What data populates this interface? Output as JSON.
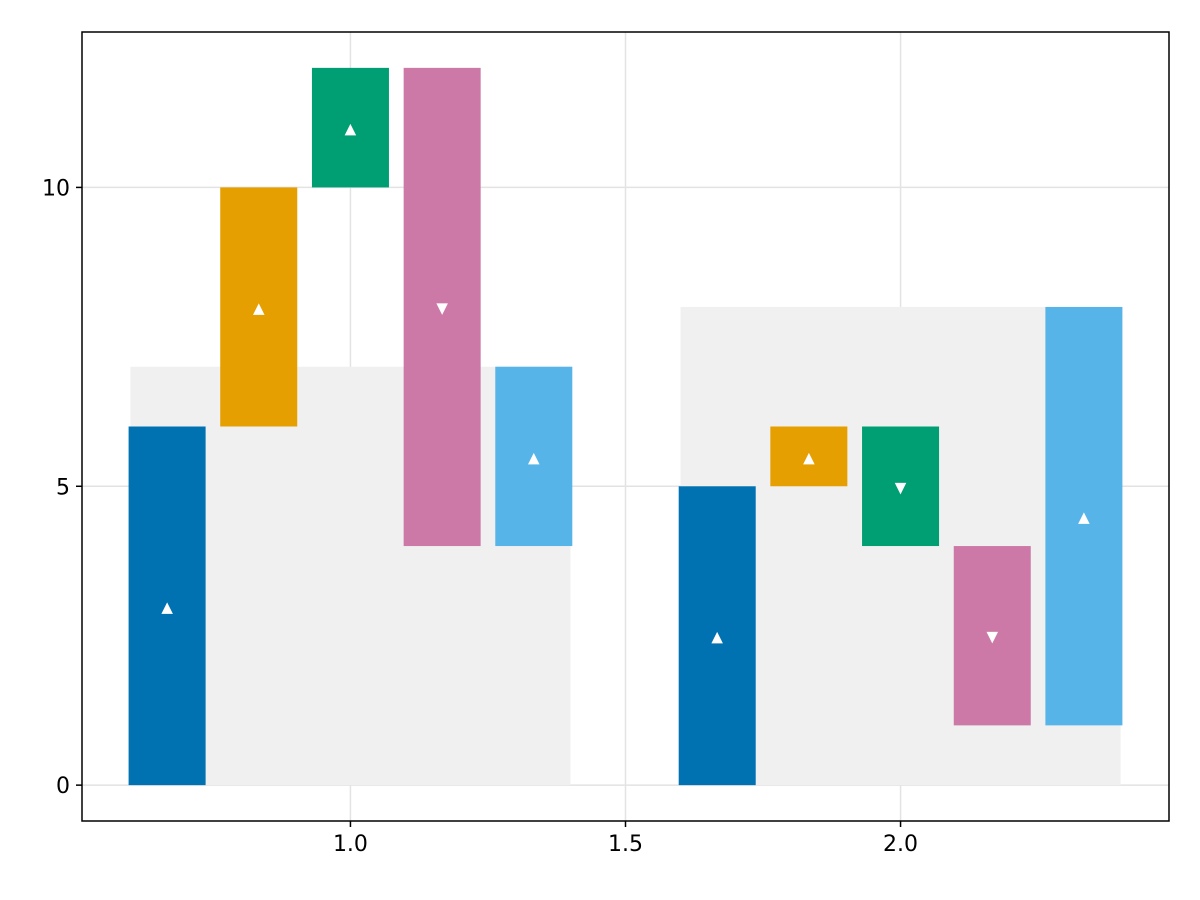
{
  "chart_data": {
    "type": "waterfall",
    "title": "",
    "xlabel": "",
    "ylabel": "",
    "xlim": [
      0.512,
      2.488
    ],
    "ylim": [
      -0.6,
      12.6
    ],
    "xticks": [
      1.0,
      1.5,
      2.0
    ],
    "xtick_labels": [
      "1.0",
      "1.5",
      "2.0"
    ],
    "yticks": [
      0,
      5,
      10
    ],
    "ytick_labels": [
      "0",
      "5",
      "10"
    ],
    "grid": true,
    "series_colors": [
      "#0072B2",
      "#E69F00",
      "#009E73",
      "#CC79A7",
      "#56B4E9"
    ],
    "total_color": "#F0F0F0",
    "direction_up_marker": "▲",
    "direction_down_marker": "▼",
    "groups": [
      {
        "x": 1.0,
        "total": 7,
        "bars": [
          {
            "x": 0.6667,
            "start": 0,
            "end": 6,
            "direction": "up"
          },
          {
            "x": 0.8333,
            "start": 6,
            "end": 10,
            "direction": "up"
          },
          {
            "x": 1.0,
            "start": 10,
            "end": 12,
            "direction": "up"
          },
          {
            "x": 1.1667,
            "start": 12,
            "end": 4,
            "direction": "down"
          },
          {
            "x": 1.3333,
            "start": 4,
            "end": 7,
            "direction": "up"
          }
        ]
      },
      {
        "x": 2.0,
        "total": 8,
        "bars": [
          {
            "x": 1.6667,
            "start": 0,
            "end": 5,
            "direction": "up"
          },
          {
            "x": 1.8333,
            "start": 5,
            "end": 6,
            "direction": "up"
          },
          {
            "x": 2.0,
            "start": 6,
            "end": 4,
            "direction": "down"
          },
          {
            "x": 2.1667,
            "start": 4,
            "end": 1,
            "direction": "down"
          },
          {
            "x": 2.3333,
            "start": 1,
            "end": 8,
            "direction": "up"
          }
        ]
      }
    ]
  }
}
